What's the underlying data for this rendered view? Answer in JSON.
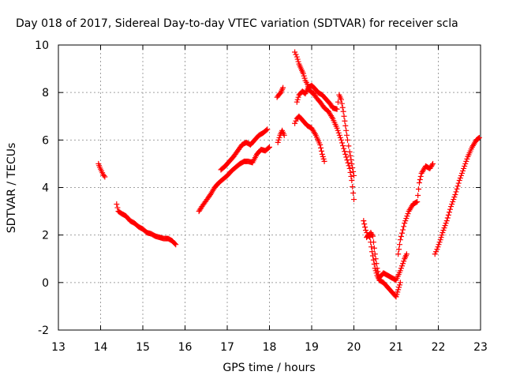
{
  "chart_data": {
    "type": "scatter",
    "title": "Day 018 of 2017, Sidereal Day-to-day VTEC variation (SDTVAR) for receiver scla",
    "xlabel": "GPS time / hours",
    "ylabel": "SDTVAR / TECUs",
    "xlim": [
      13,
      23
    ],
    "ylim": [
      -2,
      10
    ],
    "xticks": [
      "13",
      "14",
      "15",
      "16",
      "17",
      "18",
      "19",
      "20",
      "21",
      "22",
      "23"
    ],
    "yticks": [
      "-2",
      "0",
      "2",
      "4",
      "6",
      "8",
      "10"
    ],
    "grid": true,
    "marker": "+",
    "color": "#ff0000",
    "series": [
      {
        "name": "seg1",
        "points": [
          [
            13.95,
            5.0
          ],
          [
            13.98,
            4.85
          ],
          [
            14.02,
            4.7
          ],
          [
            14.06,
            4.55
          ],
          [
            14.1,
            4.45
          ]
        ]
      },
      {
        "name": "seg2",
        "points": [
          [
            14.38,
            3.3
          ],
          [
            14.42,
            3.0
          ],
          [
            14.5,
            2.9
          ],
          [
            14.6,
            2.8
          ],
          [
            14.7,
            2.6
          ],
          [
            14.8,
            2.5
          ],
          [
            14.9,
            2.35
          ],
          [
            15.0,
            2.25
          ],
          [
            15.1,
            2.1
          ],
          [
            15.2,
            2.05
          ],
          [
            15.3,
            1.95
          ],
          [
            15.4,
            1.9
          ],
          [
            15.5,
            1.85
          ],
          [
            15.6,
            1.85
          ],
          [
            15.7,
            1.75
          ],
          [
            15.78,
            1.6
          ]
        ]
      },
      {
        "name": "seg3",
        "points": [
          [
            16.33,
            3.0
          ],
          [
            16.4,
            3.2
          ],
          [
            16.5,
            3.45
          ],
          [
            16.6,
            3.7
          ],
          [
            16.7,
            4.0
          ],
          [
            16.8,
            4.2
          ],
          [
            16.9,
            4.35
          ],
          [
            17.0,
            4.5
          ],
          [
            17.1,
            4.7
          ],
          [
            17.2,
            4.85
          ],
          [
            17.3,
            5.0
          ],
          [
            17.4,
            5.1
          ],
          [
            17.5,
            5.1
          ],
          [
            17.6,
            5.05
          ],
          [
            17.7,
            5.4
          ],
          [
            17.8,
            5.6
          ],
          [
            17.9,
            5.55
          ],
          [
            18.0,
            5.7
          ]
        ]
      },
      {
        "name": "seg4",
        "points": [
          [
            16.85,
            4.75
          ],
          [
            16.95,
            4.9
          ],
          [
            17.05,
            5.1
          ],
          [
            17.15,
            5.3
          ],
          [
            17.25,
            5.55
          ],
          [
            17.35,
            5.8
          ],
          [
            17.45,
            5.9
          ],
          [
            17.55,
            5.8
          ],
          [
            17.65,
            6.0
          ],
          [
            17.75,
            6.2
          ],
          [
            17.85,
            6.3
          ],
          [
            17.95,
            6.45
          ]
        ]
      },
      {
        "name": "seg5",
        "points": [
          [
            18.18,
            7.8
          ],
          [
            18.22,
            7.9
          ],
          [
            18.27,
            8.0
          ],
          [
            18.32,
            8.2
          ]
        ]
      },
      {
        "name": "seg6",
        "points": [
          [
            18.2,
            5.9
          ],
          [
            18.25,
            6.2
          ],
          [
            18.3,
            6.4
          ],
          [
            18.35,
            6.2
          ]
        ]
      },
      {
        "name": "seg7",
        "points": [
          [
            18.6,
            9.7
          ],
          [
            18.65,
            9.5
          ],
          [
            18.7,
            9.2
          ],
          [
            18.75,
            9.0
          ],
          [
            18.8,
            8.8
          ],
          [
            18.85,
            8.5
          ],
          [
            18.9,
            8.35
          ],
          [
            18.95,
            8.1
          ],
          [
            19.0,
            8.0
          ],
          [
            19.05,
            7.95
          ],
          [
            19.1,
            7.8
          ],
          [
            19.15,
            7.7
          ],
          [
            19.2,
            7.6
          ],
          [
            19.3,
            7.35
          ],
          [
            19.4,
            7.2
          ],
          [
            19.5,
            6.9
          ],
          [
            19.6,
            6.5
          ],
          [
            19.7,
            6.0
          ],
          [
            19.8,
            5.4
          ],
          [
            19.9,
            4.8
          ],
          [
            19.95,
            4.3
          ],
          [
            20.0,
            3.5
          ]
        ]
      },
      {
        "name": "seg8",
        "points": [
          [
            18.65,
            7.6
          ],
          [
            18.7,
            7.9
          ],
          [
            18.78,
            8.05
          ],
          [
            18.85,
            7.95
          ],
          [
            18.92,
            8.2
          ],
          [
            19.0,
            8.3
          ],
          [
            19.08,
            8.15
          ],
          [
            19.15,
            8.0
          ],
          [
            19.25,
            7.9
          ],
          [
            19.35,
            7.7
          ],
          [
            19.45,
            7.5
          ],
          [
            19.5,
            7.35
          ],
          [
            19.6,
            7.3
          ],
          [
            19.65,
            7.9
          ],
          [
            19.7,
            7.7
          ],
          [
            19.75,
            7.2
          ],
          [
            19.8,
            6.6
          ],
          [
            19.85,
            6.0
          ],
          [
            19.9,
            5.5
          ],
          [
            19.95,
            5.0
          ],
          [
            20.0,
            4.5
          ]
        ]
      },
      {
        "name": "seg9",
        "points": [
          [
            18.6,
            6.7
          ],
          [
            18.65,
            6.9
          ],
          [
            18.7,
            7.0
          ],
          [
            18.8,
            6.8
          ],
          [
            18.9,
            6.6
          ],
          [
            19.0,
            6.5
          ],
          [
            19.1,
            6.2
          ],
          [
            19.2,
            5.8
          ],
          [
            19.25,
            5.4
          ],
          [
            19.3,
            5.1
          ]
        ]
      },
      {
        "name": "seg10",
        "points": [
          [
            20.23,
            2.6
          ],
          [
            20.28,
            2.2
          ],
          [
            20.33,
            2.0
          ],
          [
            20.38,
            1.9
          ],
          [
            20.43,
            1.3
          ],
          [
            20.5,
            0.6
          ],
          [
            20.55,
            0.3
          ],
          [
            20.6,
            0.1
          ],
          [
            20.7,
            0.0
          ],
          [
            20.8,
            -0.2
          ],
          [
            20.9,
            -0.4
          ],
          [
            20.95,
            -0.5
          ],
          [
            21.0,
            -0.6
          ],
          [
            21.05,
            -0.3
          ],
          [
            21.1,
            0.0
          ]
        ]
      },
      {
        "name": "seg11",
        "points": [
          [
            20.3,
            1.9
          ],
          [
            20.35,
            2.0
          ],
          [
            20.4,
            2.1
          ],
          [
            20.45,
            1.95
          ],
          [
            20.5,
            1.2
          ],
          [
            20.55,
            0.6
          ],
          [
            20.6,
            0.2
          ],
          [
            20.7,
            0.4
          ],
          [
            20.8,
            0.3
          ],
          [
            20.9,
            0.2
          ],
          [
            21.0,
            0.1
          ],
          [
            21.1,
            0.5
          ],
          [
            21.2,
            1.0
          ],
          [
            21.25,
            1.2
          ]
        ]
      },
      {
        "name": "seg12",
        "points": [
          [
            21.05,
            1.2
          ],
          [
            21.1,
            1.8
          ],
          [
            21.2,
            2.5
          ],
          [
            21.3,
            3.0
          ],
          [
            21.4,
            3.3
          ],
          [
            21.5,
            3.4
          ],
          [
            21.55,
            4.2
          ],
          [
            21.6,
            4.6
          ],
          [
            21.7,
            4.9
          ],
          [
            21.8,
            4.8
          ],
          [
            21.87,
            5.0
          ]
        ]
      },
      {
        "name": "seg13",
        "points": [
          [
            21.92,
            1.2
          ],
          [
            21.97,
            1.4
          ],
          [
            22.05,
            1.8
          ],
          [
            22.1,
            2.1
          ],
          [
            22.2,
            2.6
          ],
          [
            22.3,
            3.2
          ],
          [
            22.4,
            3.7
          ],
          [
            22.5,
            4.3
          ],
          [
            22.6,
            4.8
          ],
          [
            22.7,
            5.3
          ],
          [
            22.8,
            5.7
          ],
          [
            22.9,
            6.0
          ],
          [
            22.97,
            6.1
          ]
        ]
      }
    ]
  }
}
